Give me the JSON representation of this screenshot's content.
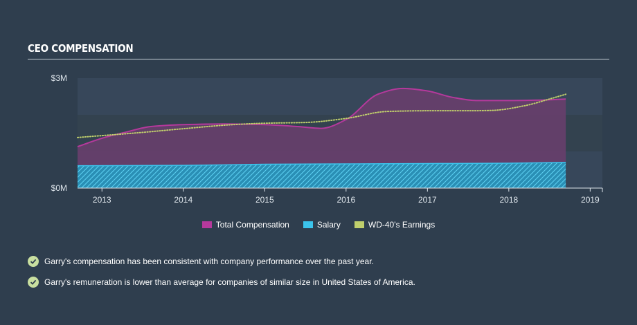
{
  "section": {
    "title": "CEO COMPENSATION"
  },
  "chart_data": {
    "type": "area",
    "title": "",
    "xlabel": "",
    "ylabel": "",
    "ylim": [
      0,
      3000000
    ],
    "xlim": [
      2012.7,
      2019.15
    ],
    "y_ticks": [
      {
        "value": 0,
        "label": "$0M"
      },
      {
        "value": 3000000,
        "label": "$3M"
      }
    ],
    "x_ticks": [
      {
        "value": 2013,
        "label": "2013"
      },
      {
        "value": 2014,
        "label": "2014"
      },
      {
        "value": 2015,
        "label": "2015"
      },
      {
        "value": 2016,
        "label": "2016"
      },
      {
        "value": 2017,
        "label": "2017"
      },
      {
        "value": 2018,
        "label": "2018"
      },
      {
        "value": 2019,
        "label": "2019"
      }
    ],
    "series": [
      {
        "name": "Total Compensation",
        "color": "#b5399c",
        "style": "filled-area",
        "points": [
          [
            2012.7,
            1130000
          ],
          [
            2013.0,
            1360000
          ],
          [
            2013.3,
            1530000
          ],
          [
            2013.6,
            1680000
          ],
          [
            2014.0,
            1730000
          ],
          [
            2014.5,
            1750000
          ],
          [
            2015.0,
            1730000
          ],
          [
            2015.4,
            1680000
          ],
          [
            2015.7,
            1630000
          ],
          [
            2016.0,
            1870000
          ],
          [
            2016.4,
            2570000
          ],
          [
            2016.7,
            2720000
          ],
          [
            2017.0,
            2650000
          ],
          [
            2017.3,
            2480000
          ],
          [
            2017.6,
            2390000
          ],
          [
            2018.0,
            2390000
          ],
          [
            2018.4,
            2400000
          ],
          [
            2018.7,
            2430000
          ]
        ]
      },
      {
        "name": "Salary",
        "color": "#3bc4ec",
        "style": "hatched-area",
        "points": [
          [
            2012.7,
            610000
          ],
          [
            2014.0,
            620000
          ],
          [
            2015.0,
            650000
          ],
          [
            2016.0,
            660000
          ],
          [
            2017.0,
            670000
          ],
          [
            2018.0,
            680000
          ],
          [
            2018.7,
            700000
          ]
        ]
      },
      {
        "name": "WD-40's Earnings",
        "color": "#c0cf6c",
        "style": "dotted-line",
        "points": [
          [
            2012.7,
            1380000
          ],
          [
            2013.5,
            1520000
          ],
          [
            2014.0,
            1620000
          ],
          [
            2014.6,
            1730000
          ],
          [
            2015.0,
            1770000
          ],
          [
            2015.5,
            1790000
          ],
          [
            2016.0,
            1900000
          ],
          [
            2016.5,
            2090000
          ],
          [
            2017.0,
            2110000
          ],
          [
            2017.5,
            2110000
          ],
          [
            2017.8,
            2120000
          ],
          [
            2018.2,
            2250000
          ],
          [
            2018.5,
            2430000
          ],
          [
            2018.7,
            2560000
          ]
        ]
      }
    ],
    "grid": true,
    "legend_position": "bottom"
  },
  "notes": [
    {
      "icon": "check-circle-icon",
      "text": "Garry's compensation has been consistent with company performance over the past year."
    },
    {
      "icon": "check-circle-icon",
      "text": "Garry's remuneration is lower than average for companies of similar size in United States of America."
    }
  ]
}
